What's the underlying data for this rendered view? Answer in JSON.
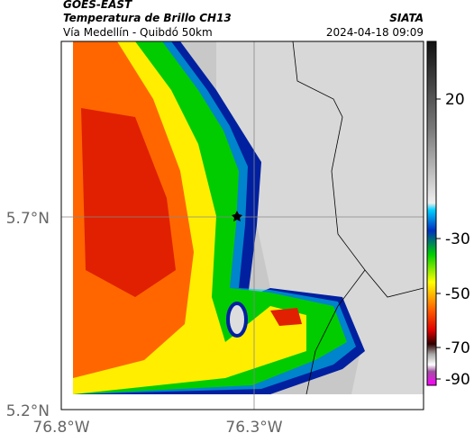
{
  "header": {
    "title": "GOES-EAST",
    "subtitle": "Temperatura de Brillo CH13",
    "location": "Vía Medellín - Quibdó 50km",
    "source": "SIATA",
    "datetime": "2024-04-18 09:09"
  },
  "axes": {
    "y_labels": [
      "5.7°N",
      "5.2°N"
    ],
    "x_labels": [
      "76.8°W",
      "76.3°W"
    ]
  },
  "colorbar": {
    "ticks": [
      20,
      -30,
      -50,
      -70,
      -90
    ]
  }
}
